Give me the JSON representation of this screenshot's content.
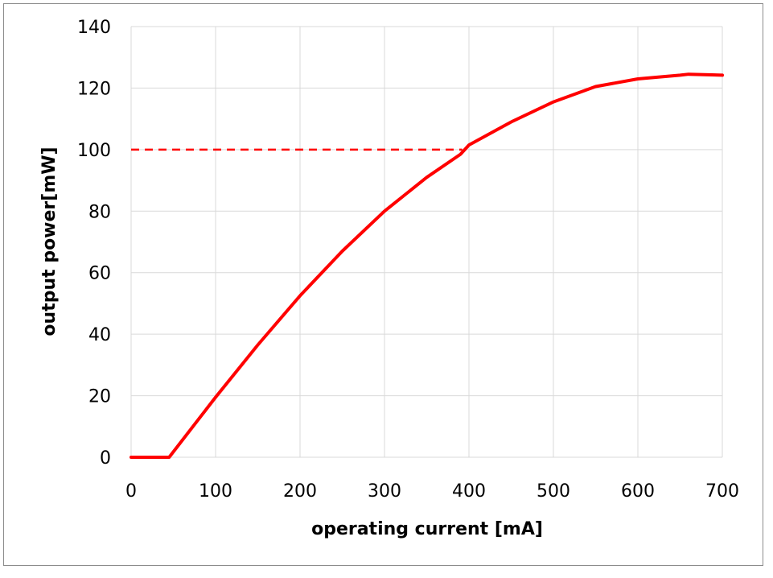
{
  "chart_data": {
    "type": "line",
    "title": "",
    "xlabel": "operating current [mA]",
    "ylabel": "output power[mW]",
    "xlim": [
      0,
      700
    ],
    "ylim": [
      0,
      140
    ],
    "xticks": [
      0,
      100,
      200,
      300,
      400,
      500,
      600,
      700
    ],
    "yticks": [
      0,
      20,
      40,
      60,
      80,
      100,
      120,
      140
    ],
    "x_tick_labels": [
      "0",
      "100",
      "200",
      "300",
      "400",
      "500",
      "600",
      "700"
    ],
    "y_tick_labels": [
      "0",
      "20",
      "40",
      "60",
      "80",
      "100",
      "120",
      "140"
    ],
    "grid": true,
    "legend": "none",
    "series": [
      {
        "color": "#ff0000",
        "style": "solid",
        "x": [
          0,
          45,
          100,
          150,
          200,
          250,
          300,
          350,
          390,
          400,
          450,
          500,
          550,
          600,
          650,
          660,
          700
        ],
        "y": [
          0,
          0,
          19.5,
          36.5,
          52.5,
          67,
          80,
          91,
          98.5,
          101.5,
          109,
          115.5,
          120.5,
          123,
          124.2,
          124.5,
          124.2
        ]
      }
    ],
    "reference_lines": [
      {
        "color": "#ff0000",
        "style": "dashed",
        "x": [
          0,
          392
        ],
        "y": [
          100,
          100
        ]
      }
    ]
  }
}
